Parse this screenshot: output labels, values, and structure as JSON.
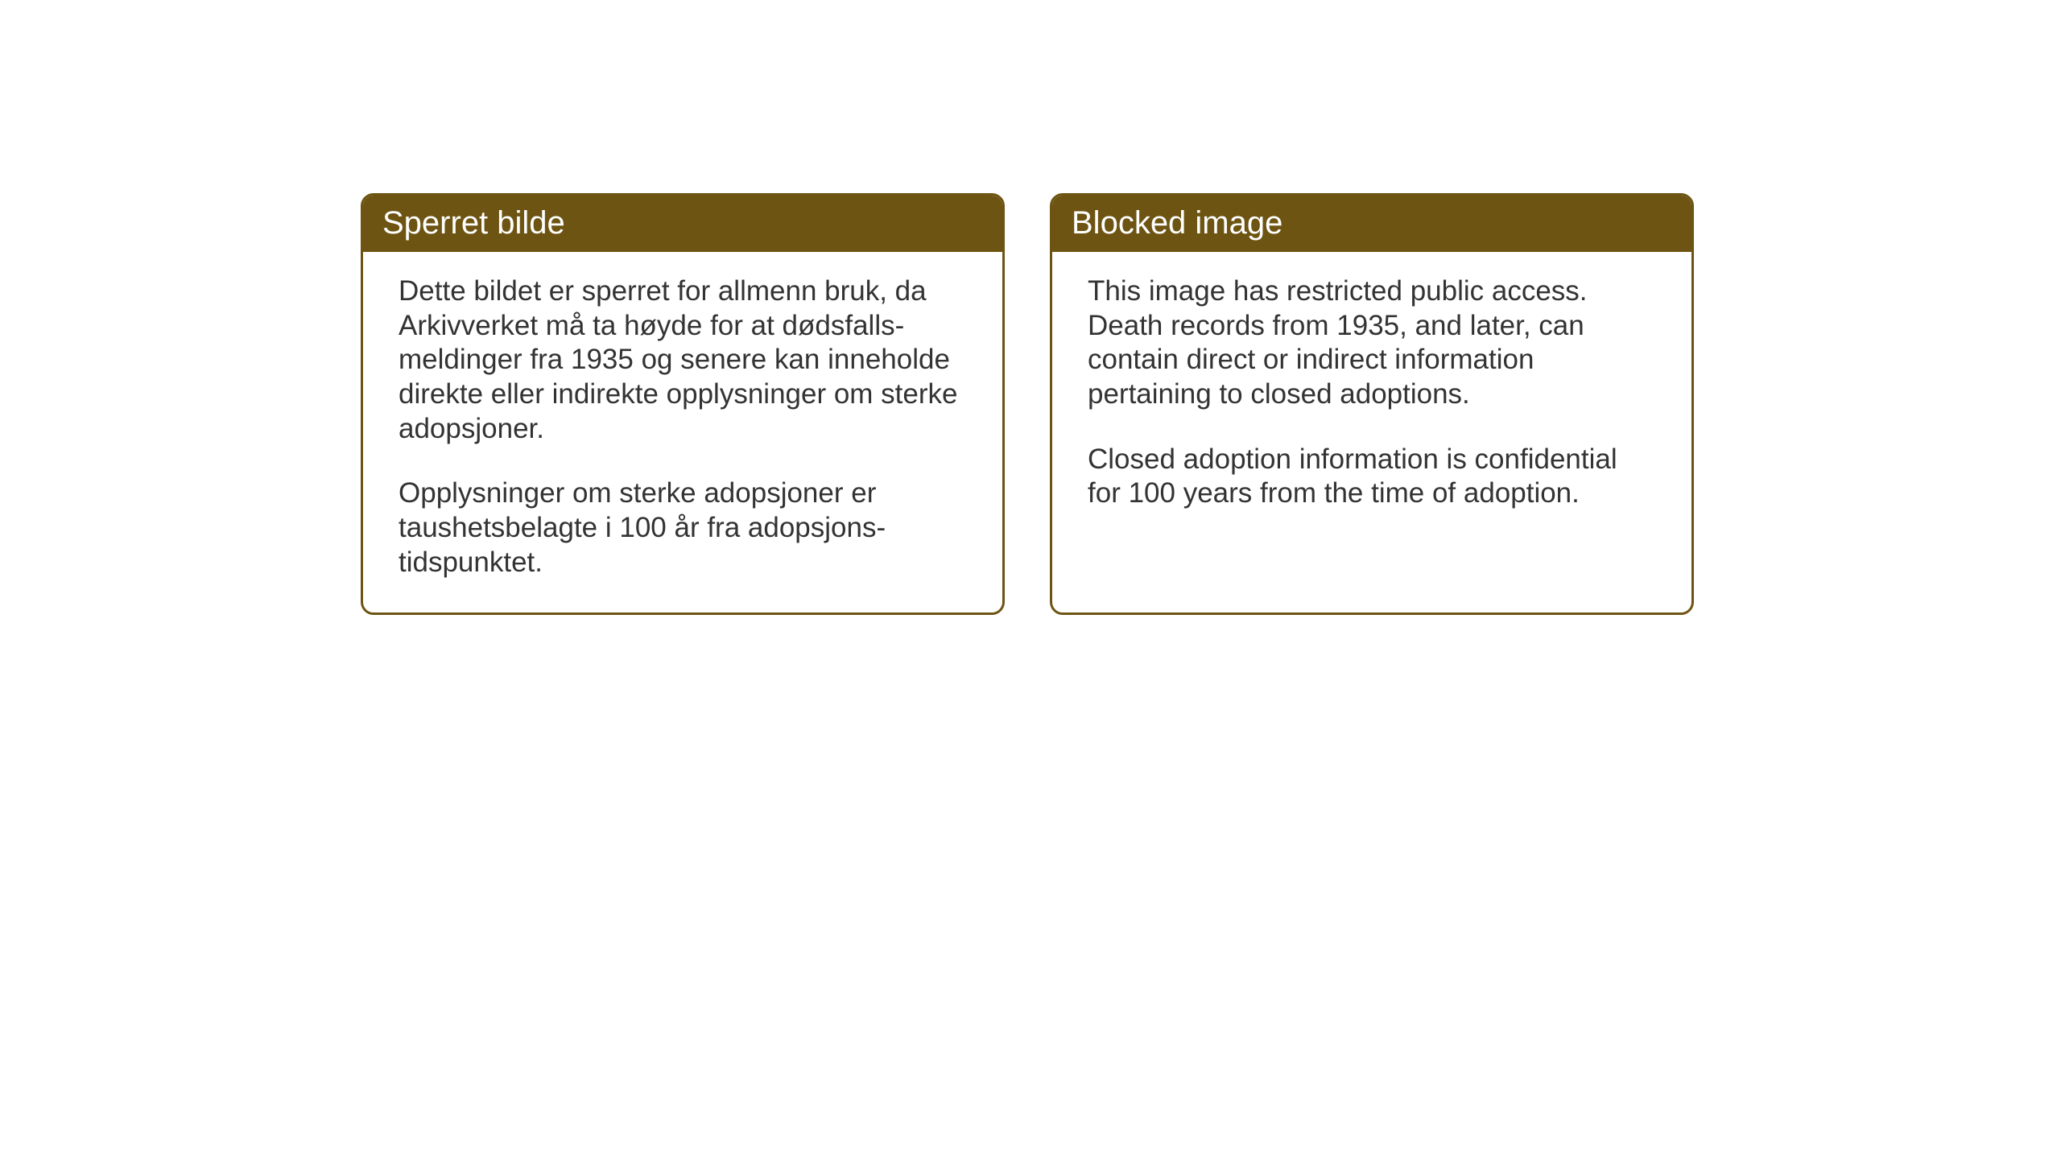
{
  "layout": {
    "background_color": "#ffffff",
    "card_border_color": "#6d5412",
    "header_bg_color": "#6d5412",
    "header_text_color": "#ffffff",
    "body_text_color": "#333333",
    "card_border_radius": 16,
    "card_border_width": 3,
    "header_fontsize": 40,
    "body_fontsize": 35
  },
  "cards": {
    "left": {
      "title": "Sperret bilde",
      "p1": "Dette bildet er sperret for allmenn bruk, da Arkivverket må ta høyde for at dødsfalls-meldinger fra 1935 og senere kan inneholde direkte eller indirekte opplysninger om sterke adopsjoner.",
      "p2": "Opplysninger om sterke adopsjoner er taushetsbelagte i 100 år fra adopsjons-tidspunktet."
    },
    "right": {
      "title": "Blocked image",
      "p1": "This image has restricted public access. Death records from 1935, and later, can contain direct or indirect information pertaining to closed adoptions.",
      "p2": "Closed adoption information is confidential for 100 years from the time of adoption."
    }
  }
}
